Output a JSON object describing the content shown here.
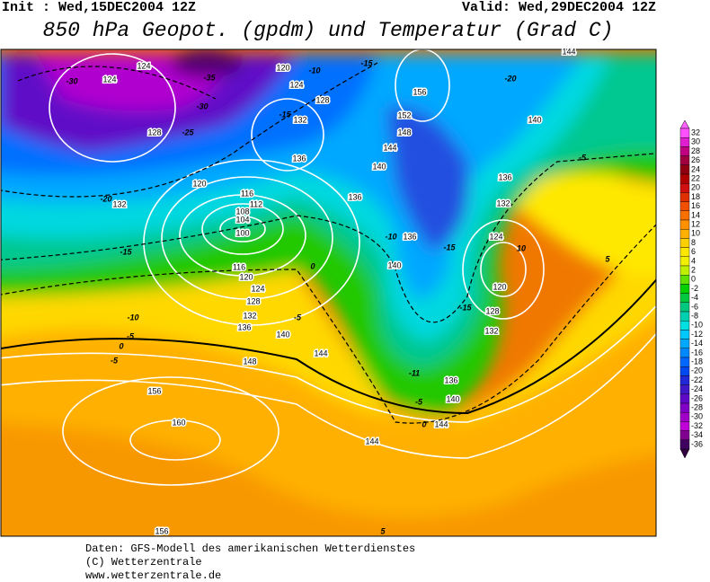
{
  "header": {
    "init": "Init : Wed,15DEC2004 12Z",
    "valid": "Valid: Wed,29DEC2004 12Z",
    "title": "850 hPa Geopot. (gpdm) und Temperatur (Grad C)"
  },
  "colorbar": {
    "labels": [
      32,
      30,
      28,
      26,
      24,
      22,
      20,
      18,
      16,
      14,
      12,
      10,
      8,
      6,
      4,
      2,
      0,
      -2,
      -4,
      -6,
      -8,
      -10,
      -12,
      -14,
      -16,
      -18,
      -20,
      -22,
      -24,
      -26,
      -28,
      -30,
      -32,
      -34,
      -36
    ],
    "colors": [
      "#ff50ff",
      "#e020d0",
      "#c00080",
      "#a00040",
      "#900010",
      "#b00000",
      "#d01010",
      "#e03000",
      "#f05000",
      "#f87000",
      "#ff9000",
      "#ffb000",
      "#ffd000",
      "#ffe800",
      "#f0f000",
      "#c0f000",
      "#60e000",
      "#00d000",
      "#00c840",
      "#00c880",
      "#00d0b0",
      "#00e0e0",
      "#00c8ff",
      "#00a8ff",
      "#0088ff",
      "#0068ff",
      "#0048f0",
      "#2028d8",
      "#4018c8",
      "#6008c8",
      "#8000c8",
      "#a000c8",
      "#c000d8",
      "#800090",
      "#400060"
    ]
  },
  "contour_labels": [
    "124",
    "124",
    "-30",
    "-35",
    "-30",
    "128",
    "-25",
    "120",
    "-10",
    "124",
    "128",
    "-15",
    "132",
    "136",
    "-15",
    "156",
    "-20",
    "144",
    "152",
    "148",
    "140",
    "144",
    "140",
    "136",
    "-5",
    "136",
    "132",
    "120",
    "116",
    "112",
    "108",
    "104",
    "100",
    "-20",
    "132",
    "-15",
    "-10",
    "136",
    "-15",
    "124",
    "10",
    "5",
    "140",
    "0",
    "116",
    "120",
    "124",
    "128",
    "132",
    "136",
    "120",
    "-15",
    "128",
    "132",
    "-10",
    "-5",
    "-5",
    "140",
    "0",
    "-5",
    "144",
    "148",
    "-11",
    "136",
    "156",
    "-5",
    "140",
    "0",
    "144",
    "160",
    "144",
    "5",
    "156"
  ],
  "footer": {
    "line1": "Daten: GFS-Modell des amerikanischen Wetterdienstes",
    "line2": "(C) Wetterzentrale",
    "line3": "www.wetterzentrale.de"
  }
}
